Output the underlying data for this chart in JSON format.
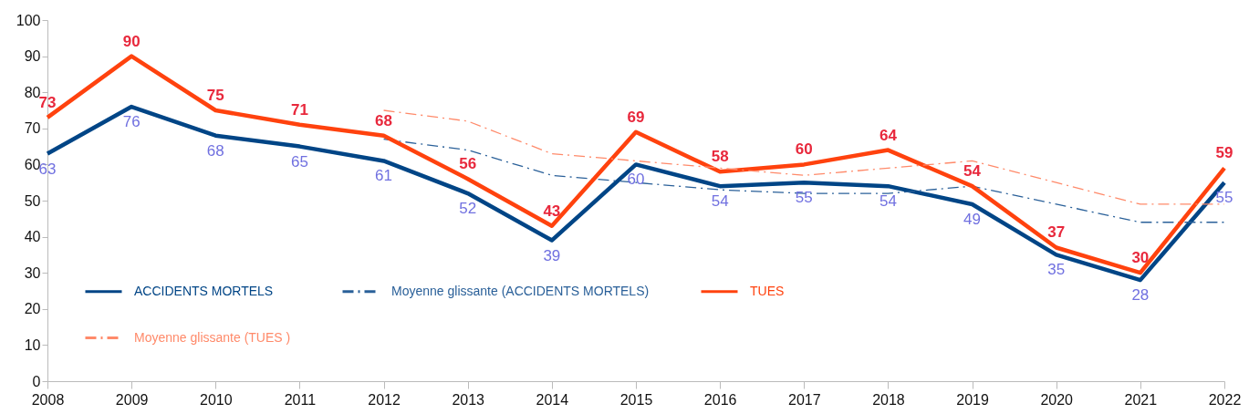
{
  "chart_data": {
    "type": "line",
    "categories": [
      "2008",
      "2009",
      "2010",
      "2011",
      "2012",
      "2013",
      "2014",
      "2015",
      "2016",
      "2017",
      "2018",
      "2019",
      "2020",
      "2021",
      "2022"
    ],
    "ylim": [
      0,
      100
    ],
    "yticks": [
      0,
      10,
      20,
      30,
      40,
      50,
      60,
      70,
      80,
      90,
      100
    ],
    "legend": "bottom left",
    "series": [
      {
        "name": "ACCIDENTS MORTELS",
        "color": "#004586",
        "data_labels": true,
        "values": [
          63,
          76,
          68,
          65,
          61,
          52,
          39,
          60,
          54,
          55,
          54,
          49,
          35,
          28,
          55
        ]
      },
      {
        "name": "Moyenne glissante (ACCIDENTS MORTELS)",
        "color": "#2a6099",
        "line_style": "dashed",
        "values": [
          null,
          null,
          null,
          null,
          67,
          64,
          57,
          55,
          53,
          52,
          52,
          54,
          49,
          44,
          44
        ]
      },
      {
        "name": "TUES",
        "color": "#ff420e",
        "data_labels": true,
        "values": [
          73,
          90,
          75,
          71,
          68,
          56,
          43,
          69,
          58,
          60,
          64,
          54,
          37,
          30,
          59
        ]
      },
      {
        "name": "Moyenne glissante (TUES )",
        "color": "#ff8a6a",
        "line_style": "dashed",
        "values": [
          null,
          null,
          null,
          null,
          75,
          72,
          63,
          61,
          59,
          57,
          59,
          61,
          55,
          49,
          49
        ]
      }
    ]
  }
}
